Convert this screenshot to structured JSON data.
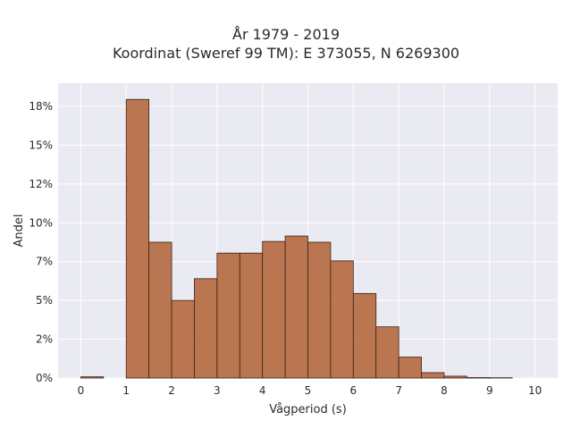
{
  "chart_data": {
    "type": "bar",
    "title_lines": [
      "År 1979 - 2019",
      "Koordinat (Sweref 99 TM): E 373055, N 6269300"
    ],
    "xlabel": "Vågperiod (s)",
    "ylabel": "Andel",
    "xlim": [
      -0.5,
      10.5
    ],
    "ylim": [
      0,
      0.19
    ],
    "x_ticks": [
      0,
      1,
      2,
      3,
      4,
      5,
      6,
      7,
      8,
      9,
      10
    ],
    "x_tick_labels": [
      "0",
      "1",
      "2",
      "3",
      "4",
      "5",
      "6",
      "7",
      "8",
      "9",
      "10"
    ],
    "y_ticks": [
      0,
      0.025,
      0.05,
      0.075,
      0.1,
      0.125,
      0.15,
      0.175
    ],
    "y_tick_labels": [
      "0%",
      "2%",
      "5%",
      "7%",
      "10%",
      "12%",
      "15%",
      "18%"
    ],
    "bin_width": 0.5,
    "bins": [
      {
        "start": 0.0,
        "value": 0.0008
      },
      {
        "start": 1.0,
        "value": 0.1795
      },
      {
        "start": 1.5,
        "value": 0.0875
      },
      {
        "start": 2.0,
        "value": 0.05
      },
      {
        "start": 2.5,
        "value": 0.064
      },
      {
        "start": 3.0,
        "value": 0.0805
      },
      {
        "start": 3.5,
        "value": 0.0805
      },
      {
        "start": 4.0,
        "value": 0.088
      },
      {
        "start": 4.5,
        "value": 0.0915
      },
      {
        "start": 5.0,
        "value": 0.0875
      },
      {
        "start": 5.5,
        "value": 0.0755
      },
      {
        "start": 6.0,
        "value": 0.0545
      },
      {
        "start": 6.5,
        "value": 0.033
      },
      {
        "start": 7.0,
        "value": 0.0135
      },
      {
        "start": 7.5,
        "value": 0.0035
      },
      {
        "start": 8.0,
        "value": 0.0012
      },
      {
        "start": 8.5,
        "value": 0.0003
      },
      {
        "start": 9.0,
        "value": 0.0002
      }
    ],
    "grid": true,
    "colors": {
      "bar_fill": "#b5683f",
      "bar_edge": "#3d2316",
      "plot_bg": "#eaeaf2",
      "grid": "#ffffff"
    }
  }
}
